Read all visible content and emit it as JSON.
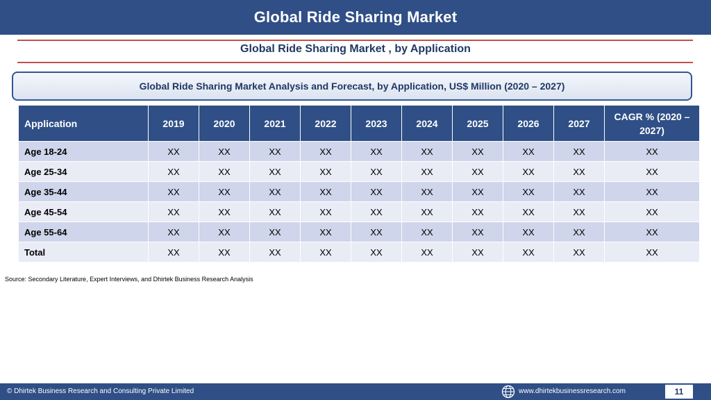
{
  "header": {
    "title": "Global Ride Sharing Market"
  },
  "subtitle": "Global Ride Sharing Market , by Application",
  "banner": "Global Ride Sharing Market  Analysis and Forecast, by Application, US$ Million (2020 – 2027)",
  "table": {
    "header_app": "Application",
    "years": [
      "2019",
      "2020",
      "2021",
      "2022",
      "2023",
      "2024",
      "2025",
      "2026",
      "2027"
    ],
    "header_cagr": "CAGR % (2020 – 2027)",
    "rows": [
      {
        "label": "Age 18-24",
        "values": [
          "XX",
          "XX",
          "XX",
          "XX",
          "XX",
          "XX",
          "XX",
          "XX",
          "XX",
          "XX"
        ]
      },
      {
        "label": "Age 25-34",
        "values": [
          "XX",
          "XX",
          "XX",
          "XX",
          "XX",
          "XX",
          "XX",
          "XX",
          "XX",
          "XX"
        ]
      },
      {
        "label": "Age 35-44",
        "values": [
          "XX",
          "XX",
          "XX",
          "XX",
          "XX",
          "XX",
          "XX",
          "XX",
          "XX",
          "XX"
        ]
      },
      {
        "label": "Age 45-54",
        "values": [
          "XX",
          "XX",
          "XX",
          "XX",
          "XX",
          "XX",
          "XX",
          "XX",
          "XX",
          "XX"
        ]
      },
      {
        "label": "Age 55-64",
        "values": [
          "XX",
          "XX",
          "XX",
          "XX",
          "XX",
          "XX",
          "XX",
          "XX",
          "XX",
          "XX"
        ]
      },
      {
        "label": "Total",
        "values": [
          "XX",
          "XX",
          "XX",
          "XX",
          "XX",
          "XX",
          "XX",
          "XX",
          "XX",
          "XX"
        ]
      }
    ]
  },
  "source": "Source: Secondary Literature, Expert Interviews, and Dhirtek Business Research Analysis",
  "footer": {
    "copyright": "© Dhirtek Business Research and Consulting Private Limited",
    "globe_icon": "globe-icon",
    "website": "www.dhirtekbusinessresearch.com",
    "page_number": "11"
  },
  "colors": {
    "header_bg": "#2f4f86",
    "accent_rule": "#c0504d",
    "row_odd": "#cfd5ea",
    "row_even": "#e9ebf5",
    "title_text": "#1f3864"
  }
}
